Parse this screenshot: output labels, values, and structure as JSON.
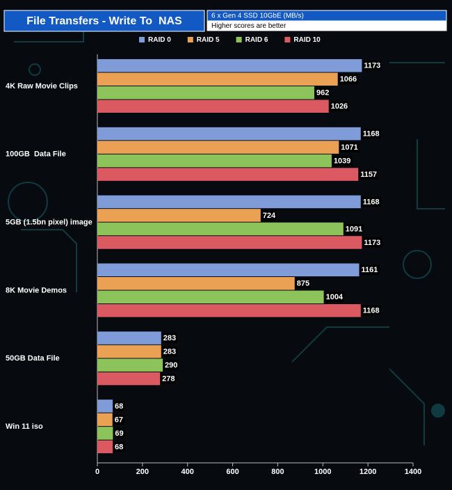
{
  "chart_data": {
    "type": "bar",
    "orientation": "horizontal",
    "title": "File Transfers - Write To  NAS",
    "subtitle": "6 x Gen 4 SSD 10GbE (MB/s)",
    "annotation": "Higher scores are better",
    "categories": [
      "4K Raw Movie Clips",
      "100GB  Data File",
      "5GB (1.5bn pixel) image",
      "8K Movie Demos",
      "50GB Data File",
      "Win 11 iso"
    ],
    "series": [
      {
        "name": "RAID 0",
        "color": "#7f9bd8",
        "values": [
          1173,
          1168,
          1168,
          1161,
          283,
          68
        ]
      },
      {
        "name": "RAID 5",
        "color": "#eba153",
        "values": [
          1066,
          1071,
          724,
          875,
          283,
          67
        ]
      },
      {
        "name": "RAID 6",
        "color": "#8dc35b",
        "values": [
          962,
          1039,
          1091,
          1004,
          290,
          69
        ]
      },
      {
        "name": "RAID 10",
        "color": "#db5a61",
        "values": [
          1026,
          1157,
          1173,
          1168,
          278,
          68
        ]
      }
    ],
    "xlim": [
      0,
      1400
    ],
    "xticks": [
      0,
      200,
      400,
      600,
      800,
      1000,
      1200,
      1400
    ],
    "legend": "top"
  }
}
